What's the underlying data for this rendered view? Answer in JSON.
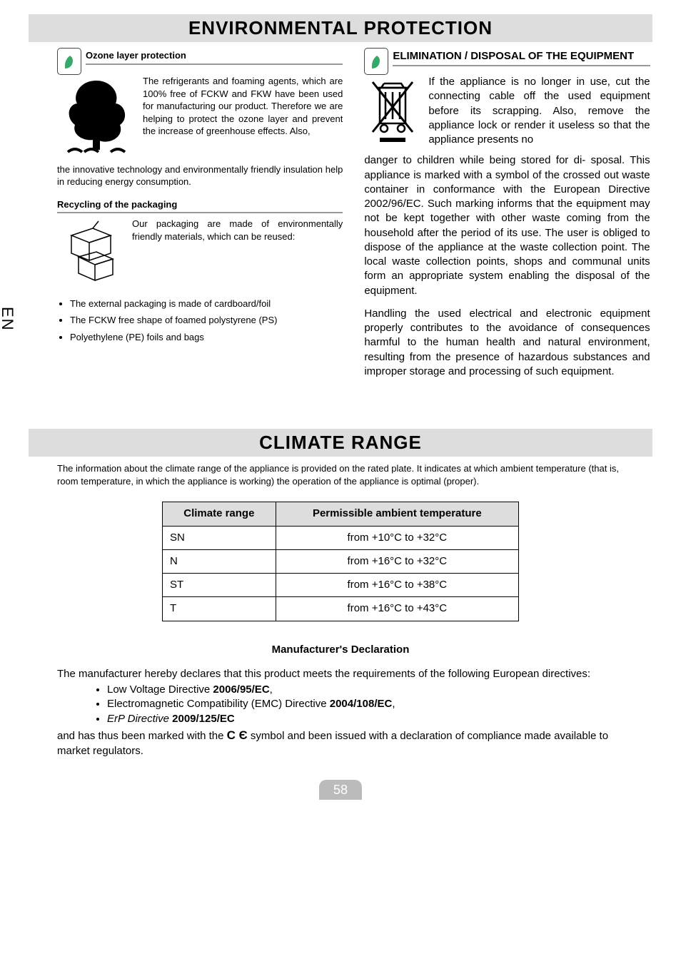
{
  "side_tab": "EN",
  "section1": {
    "title": "ENVIRONMENTAL PROTECTION",
    "left": {
      "heading1": "Ozone layer protection",
      "para1a": "The refrigerants and foaming agents, which are 100% free of FCKW and FKW have been used for manufacturing our product. Therefore we are helping to protect the ozone layer and prevent the increase of greenhouse effects. Also,",
      "para1b": "the innovative technology and environmentally friendly insulation help in reducing energy consumption.",
      "heading2": "Recycling of the packaging",
      "para2": "Our packaging are made of environmentally friendly materials, which can be reused:",
      "bullets": [
        "The external packaging is made of cardboard/foil",
        "The FCKW free shape of foamed polystyrene (PS)",
        "Polyethylene (PE) foils and bags"
      ]
    },
    "right": {
      "heading": "ELIMINATION / DISPOSAL OF THE EQUIPMENT",
      "para_a": "If the appliance is no longer in use, cut the connecting cable off the used equipment before its scrapping. Also, remove the appliance lock or render it useless so that the appliance presents no",
      "para_b": "danger to  children while being stored for di- sposal. This appliance is marked with a symbol of the crossed out waste container in conformance with the European Directive 2002/96/EC. Such marking informs that the equipment may not be kept together with other waste coming from the household after the period of its use. The user is obliged to dispose of the appliance at the waste collection point. The local waste collection points, shops and communal units form an appropriate system enabling the disposal of the equipment.",
      "para_c": "Handling the used electrical and electronic equipment properly contributes to the avoidance of consequences harmful to the human health and natural environment, resulting from the presence of hazardous substances and improper storage and processing of such equipment."
    }
  },
  "section2": {
    "title": "CLIMATE RANGE",
    "desc": "The information about the climate range of the appliance is provided on the rated plate. It indicates at which ambient temperature (that is, room temperature, in which the appliance is working) the operation of the appliance is optimal (proper).",
    "table": {
      "headers": [
        "Climate range",
        "Permissible ambient temperature"
      ],
      "rows": [
        [
          "SN",
          "from +10°C to +32°C"
        ],
        [
          "N",
          "from +16°C to +32°C"
        ],
        [
          "ST",
          "from +16°C to +38°C"
        ],
        [
          "T",
          "from +16°C to +43°C"
        ]
      ]
    }
  },
  "declaration": {
    "title": "Manufacturer's Declaration",
    "lead": "The manufacturer hereby declares that this product meets the requirements of the following European directives:",
    "items_html": [
      "Low Voltage Directive <b>2006/95/EC</b>,",
      "Electromagnetic Compatibility (EMC) Directive <b>2004/108/EC</b>,",
      "<i>ErP Directive</i> <b>2009/125/EC</b>"
    ],
    "trail": "and has thus been marked with the   symbol and been issued with a declaration of compliance made available to market regulators.",
    "ce_label": "CE"
  },
  "page_number": "58",
  "colors": {
    "banner_bg": "#dddddd",
    "rule": "#999999",
    "pagenum_bg": "#bbbbbb"
  }
}
